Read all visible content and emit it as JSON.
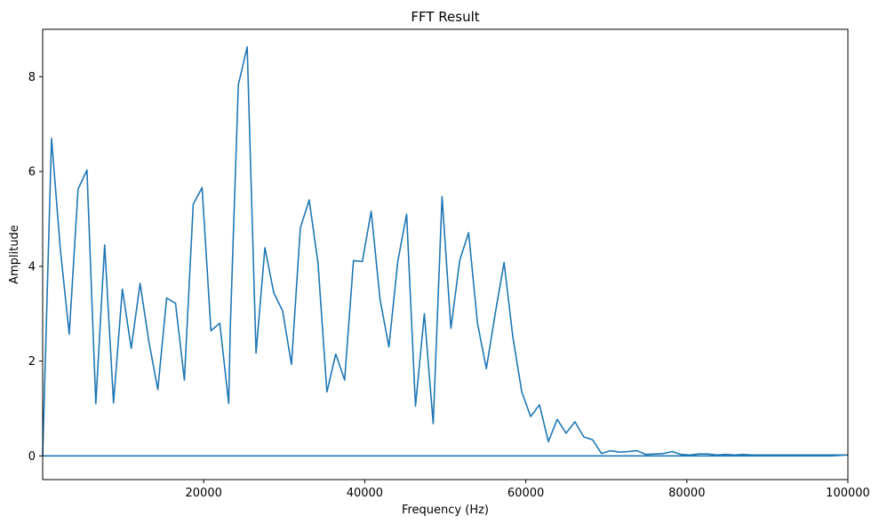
{
  "chart_data": {
    "type": "line",
    "title": "FFT Result",
    "xlabel": "Frequency (Hz)",
    "ylabel": "Amplitude",
    "xlim": [
      0,
      100000
    ],
    "ylim": [
      -0.5,
      9.0
    ],
    "x_ticks": [
      20000,
      40000,
      60000,
      80000,
      100000
    ],
    "x_tick_labels": [
      "20000",
      "40000",
      "60000",
      "80000",
      "100000"
    ],
    "y_ticks": [
      0,
      2,
      4,
      6,
      8
    ],
    "y_tick_labels": [
      "0",
      "2",
      "4",
      "6",
      "8"
    ],
    "grid": false,
    "legend": "none",
    "line_color": "#1f77b4",
    "series": [
      {
        "x": [
          0,
          1100,
          2200,
          3300,
          4400,
          5500,
          6600,
          7700,
          8800,
          9900,
          11000,
          12100,
          13200,
          14300,
          15400,
          16500,
          17600,
          18700,
          19800,
          20900,
          22000,
          23100,
          23300,
          24300,
          25400,
          26500,
          27600,
          28700,
          29800,
          30900,
          32000,
          33100,
          34200,
          35300,
          36400,
          37500,
          38600,
          39700,
          40800,
          41900,
          43000,
          44100,
          45200,
          46300,
          47400,
          48500,
          49600,
          50700,
          51800,
          52900,
          54000,
          55100,
          56200,
          57300,
          58400,
          59500,
          60600,
          61700,
          62800,
          63900,
          65000,
          66100,
          67200,
          68300,
          69400,
          70500,
          71600,
          72700,
          73800,
          74900,
          76000,
          77100,
          78200,
          79300,
          80400,
          81500,
          82600,
          83700,
          84800,
          85900,
          87000,
          88100,
          89200,
          90300,
          91400,
          92500,
          93600,
          94700,
          95800,
          96900,
          98000,
          99100,
          100000,
          98000,
          80000,
          60000,
          40000,
          20000,
          0
        ],
        "y": [
          0,
          6.7,
          4.35,
          2.57,
          5.63,
          6.03,
          1.1,
          4.45,
          1.12,
          3.52,
          2.27,
          3.64,
          2.4,
          1.4,
          3.33,
          3.22,
          1.6,
          5.31,
          5.66,
          2.64,
          2.8,
          1.11,
          2.7,
          7.83,
          8.63,
          2.17,
          4.39,
          3.44,
          3.06,
          1.93,
          4.81,
          5.4,
          4.06,
          1.35,
          2.15,
          1.6,
          4.12,
          4.1,
          5.16,
          3.3,
          2.3,
          4.1,
          5.1,
          1.05,
          3.0,
          0.68,
          5.47,
          2.69,
          4.13,
          4.71,
          2.8,
          1.84,
          3.0,
          4.08,
          2.5,
          1.35,
          0.83,
          1.08,
          0.3,
          0.77,
          0.48,
          0.72,
          0.4,
          0.34,
          0.05,
          0.11,
          0.08,
          0.09,
          0.11,
          0.03,
          0.04,
          0.05,
          0.09,
          0.03,
          0.02,
          0.04,
          0.04,
          0.02,
          0.03,
          0.02,
          0.03,
          0.02,
          0.02,
          0.02,
          0.02,
          0.02,
          0.02,
          0.02,
          0.02,
          0.02,
          0.02,
          0.02,
          0.02,
          0.0,
          0.0,
          0.0,
          0.0,
          0.0,
          0.0
        ]
      }
    ]
  }
}
